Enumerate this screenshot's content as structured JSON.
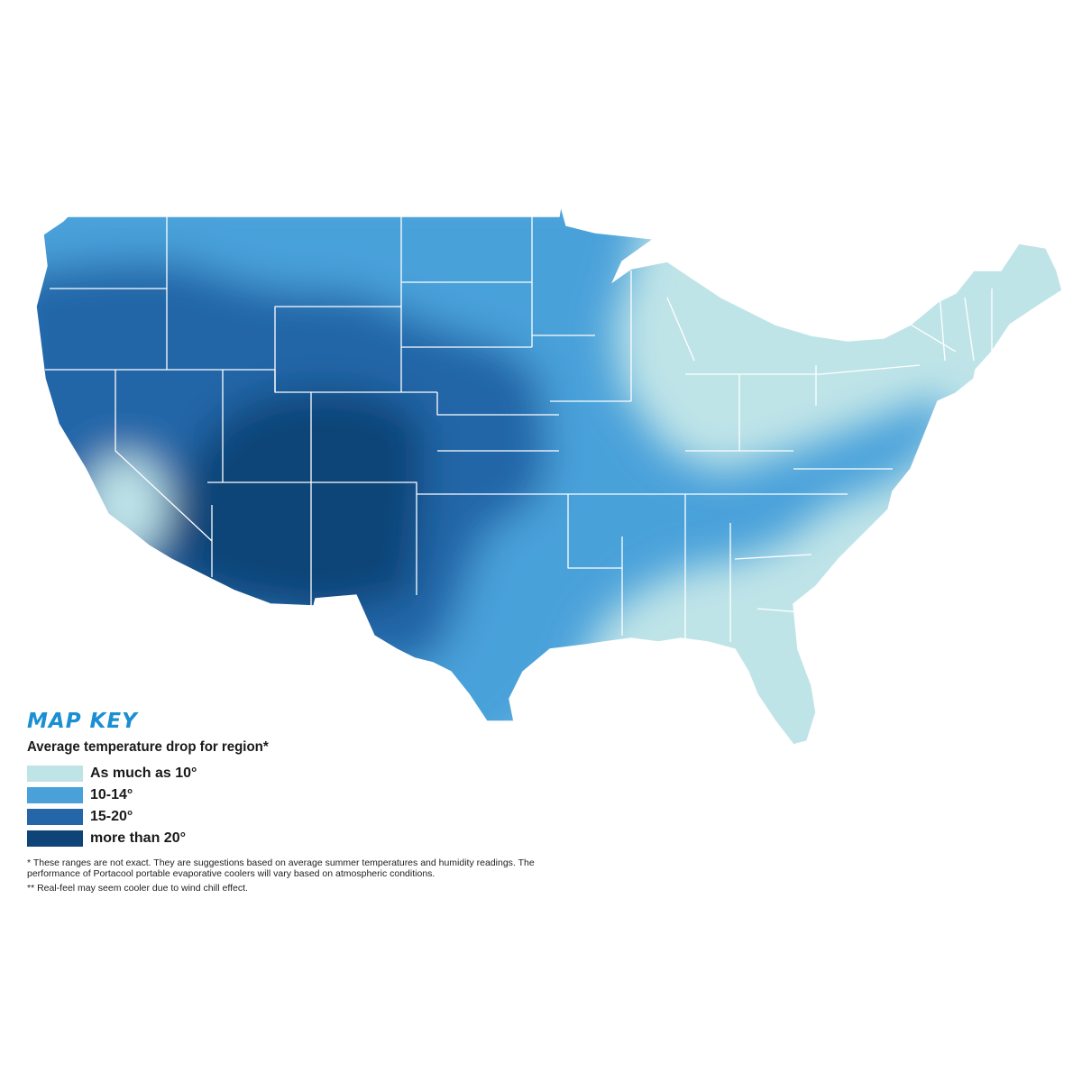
{
  "colors": {
    "background": "#ffffff",
    "as_much_as_10": "#bfe4e8",
    "10_14": "#4aa1da",
    "15_20": "#2466a8",
    "more_than_20": "#0f4478",
    "state_borders": "#ffffff"
  },
  "map_key": {
    "title": "MAP KEY",
    "subtitle": "Average temperature drop for region*",
    "items": [
      {
        "label": "As much as 10°",
        "color": "#bfe4e8"
      },
      {
        "label": "10-14°",
        "color": "#4aa1da"
      },
      {
        "label": "15-20°",
        "color": "#2466a8"
      },
      {
        "label": "more than 20°",
        "color": "#0f4478"
      }
    ]
  },
  "notes": {
    "note1": "* These ranges are not exact. They are suggestions based on average summer temperatures and humidity readings. The performance of Portacool portable evaporative coolers will vary based on atmospheric conditions.",
    "note2": "** Real-feel may seem cooler due to wind chill effect."
  }
}
